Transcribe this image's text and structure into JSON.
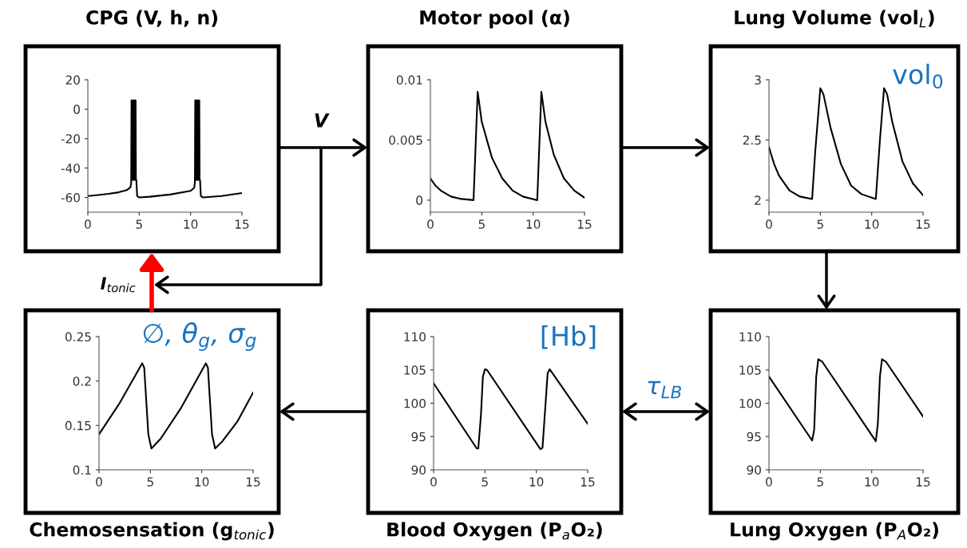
{
  "chart_data": [
    {
      "type": "line",
      "title": "CPG (V, h, n)",
      "x": [
        0,
        1,
        2,
        3,
        3.8,
        4.15,
        4.22,
        4.25,
        4.29,
        4.33,
        4.37,
        4.41,
        4.45,
        4.49,
        4.53,
        4.57,
        4.61,
        4.65,
        4.68,
        4.72,
        4.8,
        5,
        6,
        8,
        10,
        10.35,
        10.42,
        10.45,
        10.49,
        10.53,
        10.57,
        10.61,
        10.65,
        10.69,
        10.73,
        10.77,
        10.81,
        10.85,
        10.88,
        10.92,
        11,
        11.2,
        13,
        15
      ],
      "series": [
        {
          "color": "#000000",
          "values": [
            -59,
            -58.3,
            -57.5,
            -56.5,
            -55,
            -53,
            -50,
            6,
            -48,
            6,
            -48,
            6,
            -48,
            6,
            -48,
            6,
            -48,
            6,
            -48,
            -48,
            -59,
            -60,
            -59.5,
            -58,
            -55.5,
            -53.5,
            -50,
            6,
            -48,
            6,
            -48,
            6,
            -48,
            6,
            -48,
            6,
            -48,
            6,
            -48,
            -48,
            -59,
            -60,
            -59,
            -57
          ]
        }
      ],
      "xlim": [
        0,
        15
      ],
      "xticks": [
        0,
        5,
        10,
        15
      ],
      "ylim": [
        -70,
        20
      ],
      "yticks": [
        -60,
        -40,
        -20,
        0,
        20
      ],
      "grid": false,
      "legend": false,
      "annotations": [
        "V",
        "I$_{tonic}$"
      ]
    },
    {
      "type": "line",
      "title": "Motor pool (α)",
      "x": [
        0,
        0.5,
        1,
        2,
        3,
        4.2,
        4.6,
        5,
        6,
        7,
        8,
        9,
        10.4,
        10.8,
        11.2,
        12,
        13,
        14,
        15
      ],
      "series": [
        {
          "color": "#000000",
          "values": [
            0.0018,
            0.0012,
            0.0008,
            0.0003,
            0.0001,
            0.0,
            0.009,
            0.0065,
            0.0035,
            0.0018,
            0.0008,
            0.0003,
            0.0,
            0.009,
            0.0065,
            0.0038,
            0.0018,
            0.0008,
            0.0002
          ]
        }
      ],
      "xlim": [
        0,
        15
      ],
      "xticks": [
        0,
        5,
        10,
        15
      ],
      "ylim": [
        -0.001,
        0.01
      ],
      "yticks": [
        0,
        0.005,
        0.01
      ],
      "grid": false,
      "legend": false
    },
    {
      "type": "line",
      "title": "Lung Volume (vol$_{L}$)",
      "x": [
        0,
        0.5,
        1,
        2,
        3,
        4.2,
        4.5,
        5,
        5.3,
        6,
        7,
        8,
        9,
        10.4,
        10.8,
        11.2,
        11.5,
        12,
        13,
        14,
        15
      ],
      "series": [
        {
          "color": "#000000",
          "values": [
            2.44,
            2.3,
            2.2,
            2.08,
            2.03,
            2.01,
            2.4,
            2.93,
            2.88,
            2.6,
            2.3,
            2.12,
            2.05,
            2.01,
            2.5,
            2.93,
            2.88,
            2.65,
            2.32,
            2.14,
            2.04
          ]
        }
      ],
      "xlim": [
        0,
        15
      ],
      "xticks": [
        0,
        5,
        10,
        15
      ],
      "ylim": [
        1.9,
        3
      ],
      "yticks": [
        2,
        2.5,
        3
      ],
      "grid": false,
      "legend": false,
      "annotations": [
        "vol$_{0}$"
      ]
    },
    {
      "type": "line",
      "title": "Chemosensation (g$_{tonic}$)",
      "x": [
        0,
        2,
        4.2,
        4.4,
        4.8,
        5.1,
        6,
        8,
        10.4,
        10.6,
        11,
        11.3,
        12,
        13.5,
        15
      ],
      "series": [
        {
          "color": "#000000",
          "values": [
            0.14,
            0.175,
            0.22,
            0.215,
            0.14,
            0.124,
            0.135,
            0.17,
            0.22,
            0.215,
            0.14,
            0.124,
            0.132,
            0.155,
            0.187
          ]
        }
      ],
      "xlim": [
        0,
        15
      ],
      "xticks": [
        0,
        5,
        10,
        15
      ],
      "ylim": [
        0.1,
        0.25
      ],
      "yticks": [
        0.1,
        0.15,
        0.2,
        0.25
      ],
      "grid": false,
      "legend": false,
      "annotations": [
        "∅, θ$_{g}$, σ$_{g}$"
      ]
    },
    {
      "type": "line",
      "title": "Blood Oxygen (P$_{a}$O₂)",
      "x": [
        0,
        4.2,
        4.35,
        4.6,
        4.8,
        5,
        5.2,
        10.4,
        10.6,
        10.9,
        11.1,
        11.3,
        15
      ],
      "series": [
        {
          "color": "#000000",
          "values": [
            103,
            93.2,
            93.2,
            98,
            104,
            105.1,
            105,
            93.1,
            93.3,
            100,
            104.5,
            105.1,
            96.9
          ]
        }
      ],
      "xlim": [
        0,
        15
      ],
      "xticks": [
        0,
        5,
        10,
        15
      ],
      "ylim": [
        90,
        110
      ],
      "yticks": [
        90,
        95,
        100,
        105,
        110
      ],
      "grid": false,
      "legend": false,
      "annotations": [
        "[Hb]"
      ]
    },
    {
      "type": "line",
      "title": "Lung Oxygen (P$_{A}$O₂)",
      "x": [
        0,
        4.2,
        4.4,
        4.6,
        4.8,
        5.2,
        10.4,
        10.6,
        10.8,
        11,
        11.4,
        15
      ],
      "series": [
        {
          "color": "#000000",
          "values": [
            104,
            94.4,
            96,
            104,
            106.6,
            106.2,
            94.3,
            97,
            104,
            106.6,
            106.2,
            98
          ]
        }
      ],
      "xlim": [
        0,
        15
      ],
      "xticks": [
        0,
        5,
        10,
        15
      ],
      "ylim": [
        90,
        110
      ],
      "yticks": [
        90,
        95,
        100,
        105,
        110
      ],
      "grid": false,
      "legend": false,
      "annotations": [
        "τ$_{LB}$"
      ]
    }
  ]
}
